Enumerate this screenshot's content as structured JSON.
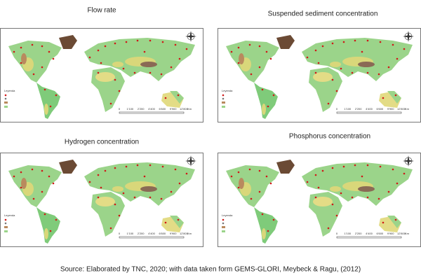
{
  "panels": [
    {
      "title": "Flow rate",
      "legend": "Leyenda",
      "scale": [
        "0",
        "1'100",
        "2'200",
        "4'400",
        "6'600",
        "9'900",
        "12'800",
        "Km"
      ]
    },
    {
      "title": "Suspended sediment concentration",
      "legend": "Leyenda",
      "scale": [
        "0",
        "1'100",
        "2'200",
        "4'400",
        "6'600",
        "9'900",
        "12'800",
        "Km"
      ]
    },
    {
      "title": "Hydrogen concentration",
      "legend": "Leyenda",
      "scale": [
        "0",
        "1'100",
        "2'200",
        "4'400",
        "6'600",
        "9'900",
        "12'800",
        "Km"
      ]
    },
    {
      "title": "Phosphorus  concentration",
      "legend": "Leyenda",
      "scale": [
        "0",
        "1'100",
        "2'200",
        "4'400",
        "6'600",
        "9'900",
        "12'800",
        "Km"
      ]
    }
  ],
  "source": "Source: Elaborated by TNC, 2020; with data taken form GEMS-GLORI, Meybeck & Ragu, (2012)"
}
